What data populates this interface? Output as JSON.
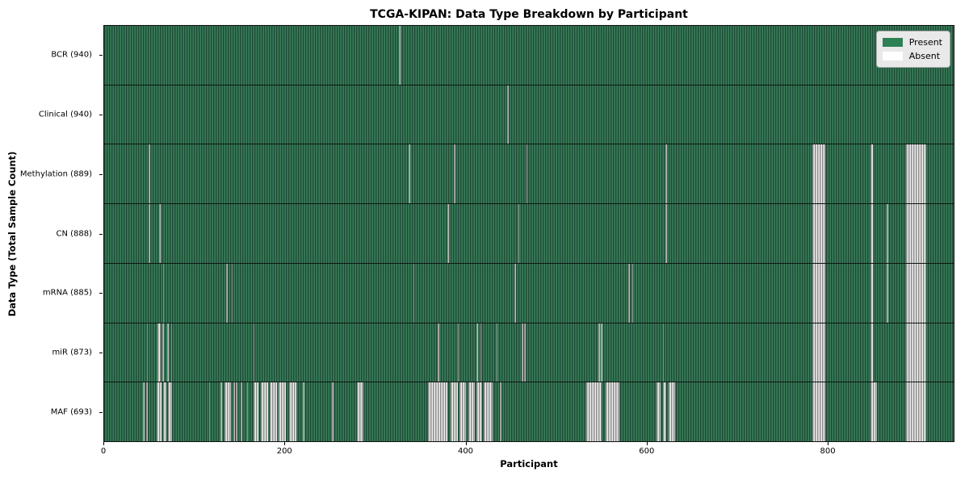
{
  "title": "TCGA-KIPAN: Data Type Breakdown by Participant",
  "legend": {
    "present_label": "Present",
    "absent_label": "Absent"
  },
  "colors": {
    "present_fill": "#2c6a4c",
    "present_stripe_dark": "#1d4b35",
    "present_stripe_light": "#3d7d5b",
    "absent_fill": "#bdbdbd",
    "absent_stripe_dark": "#8d8d8d",
    "absent_stripe_light": "#efefef",
    "legend_present_swatch": "#2e8155",
    "legend_absent_swatch": "#ffffff",
    "legend_background": "#e9e9e9"
  },
  "chart_data": {
    "type": "heatmap",
    "title": "TCGA-KIPAN: Data Type Breakdown by Participant",
    "xlabel": "Participant",
    "ylabel": "Data Type (Total Sample Count)",
    "x_max": 940,
    "x_ticks": [
      0,
      200,
      400,
      600,
      800
    ],
    "legend": [
      "Present",
      "Absent"
    ],
    "legend_position": "upper right",
    "grid": false,
    "rows": [
      {
        "label": "BCR (940)",
        "data_type": "BCR",
        "present_count": 940,
        "absent_ranges": [
          [
            326,
            327.5
          ]
        ]
      },
      {
        "label": "Clinical (940)",
        "data_type": "Clinical",
        "present_count": 940,
        "absent_ranges": [
          [
            446,
            447.5
          ]
        ]
      },
      {
        "label": "Methylation (889)",
        "data_type": "Methylation",
        "present_count": 889,
        "absent_ranges": [
          [
            49,
            50.5
          ],
          [
            337,
            338.5
          ],
          [
            387,
            388.5
          ],
          [
            467,
            468.5
          ],
          [
            621,
            622.5
          ],
          [
            784,
            798
          ],
          [
            848,
            851
          ],
          [
            887,
            910
          ]
        ]
      },
      {
        "label": "CN (888)",
        "data_type": "CN",
        "present_count": 888,
        "absent_ranges": [
          [
            49,
            50.5
          ],
          [
            61,
            62.5
          ],
          [
            380,
            381.5
          ],
          [
            458,
            459.5
          ],
          [
            621,
            622.5
          ],
          [
            784,
            798
          ],
          [
            848,
            851
          ],
          [
            866,
            867.8
          ],
          [
            887,
            910
          ]
        ]
      },
      {
        "label": "mRNA (885)",
        "data_type": "mRNA",
        "present_count": 885,
        "absent_ranges": [
          [
            65,
            66.5
          ],
          [
            135,
            136.5
          ],
          [
            141,
            142.5
          ],
          [
            342,
            343.5
          ],
          [
            454,
            455.5
          ],
          [
            580,
            581.5
          ],
          [
            584,
            585.5
          ],
          [
            784,
            798
          ],
          [
            848,
            851
          ],
          [
            866,
            867.8
          ],
          [
            887,
            910
          ]
        ]
      },
      {
        "label": "miR (873)",
        "data_type": "miR",
        "present_count": 873,
        "absent_ranges": [
          [
            47,
            48.5
          ],
          [
            59,
            63
          ],
          [
            64.5,
            66.5
          ],
          [
            70,
            71.5
          ],
          [
            74,
            75.5
          ],
          [
            165,
            166.5
          ],
          [
            369,
            370.5
          ],
          [
            391,
            392.5
          ],
          [
            412,
            413.5
          ],
          [
            416,
            417.5
          ],
          [
            434,
            435.5
          ],
          [
            462,
            463.5
          ],
          [
            465,
            466.5
          ],
          [
            547,
            548.5
          ],
          [
            549.5,
            551
          ],
          [
            618,
            619.5
          ],
          [
            784,
            798
          ],
          [
            848,
            851
          ],
          [
            887,
            910
          ]
        ]
      },
      {
        "label": "MAF (693)",
        "data_type": "MAF",
        "present_count": 693,
        "absent_ranges": [
          [
            43,
            44.5
          ],
          [
            46.5,
            48
          ],
          [
            58,
            63
          ],
          [
            65,
            68.5
          ],
          [
            71,
            75.5
          ],
          [
            116,
            117.5
          ],
          [
            129,
            130.5
          ],
          [
            133,
            140
          ],
          [
            143,
            144.5
          ],
          [
            146,
            147.5
          ],
          [
            151,
            152.5
          ],
          [
            158,
            159.5
          ],
          [
            165,
            171
          ],
          [
            173,
            181
          ],
          [
            183,
            191
          ],
          [
            193,
            201
          ],
          [
            205,
            213
          ],
          [
            220,
            221.5
          ],
          [
            252,
            253.5
          ],
          [
            280,
            287
          ],
          [
            358,
            380
          ],
          [
            383,
            391
          ],
          [
            393,
            400
          ],
          [
            403,
            410
          ],
          [
            412,
            418
          ],
          [
            420,
            430
          ],
          [
            438,
            439.5
          ],
          [
            533,
            550
          ],
          [
            555,
            570
          ],
          [
            611,
            616
          ],
          [
            618,
            622
          ],
          [
            625,
            632
          ],
          [
            784,
            798
          ],
          [
            848,
            855
          ],
          [
            887,
            910
          ]
        ]
      }
    ]
  }
}
